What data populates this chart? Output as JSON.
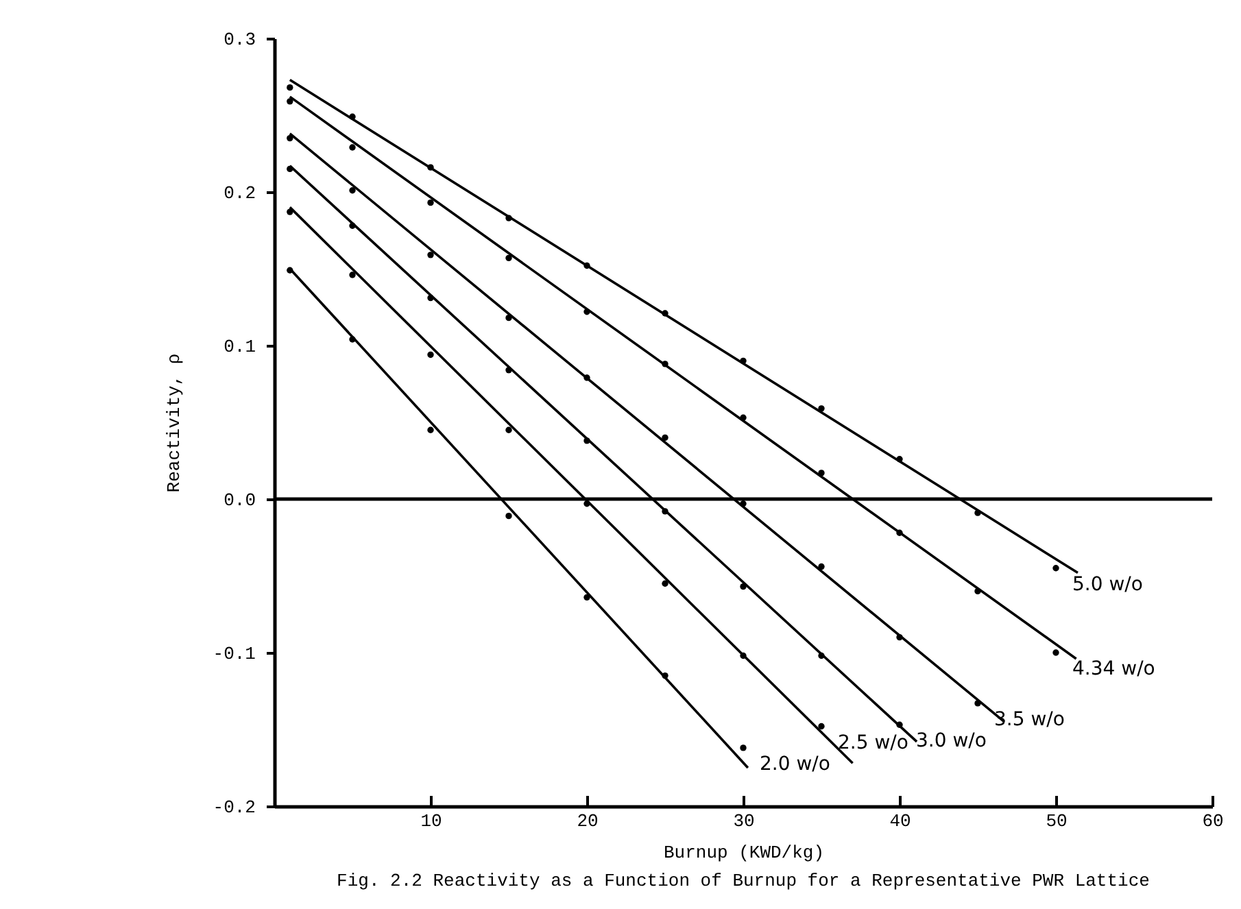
{
  "chart_data": {
    "type": "scatter",
    "xlabel": "Burnup (KWD/kg)",
    "ylabel": "Reactivity, ρ",
    "annotations": [
      "Fig. 2.2  Reactivity as a Function of Burnup for a Representative PWR Lattice"
    ],
    "xlim": [
      0,
      60
    ],
    "xticks": [
      10,
      20,
      30,
      40,
      50,
      60
    ],
    "ylim": [
      -0.2,
      0.3
    ],
    "yticks": [
      {
        "value": -0.2,
        "label": "-0.2"
      },
      {
        "value": -0.1,
        "label": "-0.1"
      },
      {
        "value": 0,
        "label": "0.0"
      },
      {
        "value": 0.1,
        "label": "0.1"
      },
      {
        "value": 0.2,
        "label": "0.2"
      },
      {
        "value": 0.3,
        "label": "0.3"
      }
    ],
    "grid": false,
    "legend": false,
    "marker": "circle",
    "line_style": "solid",
    "ref_lines": [
      {
        "axis": "y",
        "value": 0,
        "color": "#000000"
      }
    ],
    "series": [
      {
        "name": "5.0 w/o",
        "color": "#000000",
        "x": [
          1,
          5,
          10,
          15,
          20,
          25,
          30,
          35,
          40,
          45,
          50
        ],
        "values": [
          0.268,
          0.249,
          0.216,
          0.183,
          0.152,
          0.121,
          0.09,
          0.059,
          0.026,
          -0.009,
          -0.045
        ]
      },
      {
        "name": "4.34 w/o",
        "color": "#000000",
        "x": [
          1,
          5,
          10,
          15,
          20,
          25,
          30,
          35,
          40,
          45,
          50
        ],
        "values": [
          0.259,
          0.229,
          0.193,
          0.157,
          0.122,
          0.088,
          0.053,
          0.017,
          -0.022,
          -0.06,
          -0.1
        ]
      },
      {
        "name": "3.5 w/o",
        "color": "#000000",
        "x": [
          1,
          5,
          10,
          15,
          20,
          25,
          30,
          35,
          40,
          45
        ],
        "values": [
          0.235,
          0.201,
          0.159,
          0.118,
          0.079,
          0.04,
          -0.003,
          -0.044,
          -0.09,
          -0.133
        ]
      },
      {
        "name": "3.0 w/o",
        "color": "#000000",
        "x": [
          1,
          5,
          10,
          15,
          20,
          25,
          30,
          35,
          40
        ],
        "values": [
          0.215,
          0.178,
          0.131,
          0.084,
          0.038,
          -0.008,
          -0.057,
          -0.102,
          -0.147
        ]
      },
      {
        "name": "2.5 w/o",
        "color": "#000000",
        "x": [
          1,
          5,
          10,
          15,
          20,
          25,
          30,
          35
        ],
        "values": [
          0.187,
          0.146,
          0.094,
          0.045,
          -0.003,
          -0.055,
          -0.102,
          -0.148
        ]
      },
      {
        "name": "2.0 w/o",
        "color": "#000000",
        "x": [
          1,
          5,
          10,
          15,
          20,
          25,
          30
        ],
        "values": [
          0.149,
          0.104,
          0.045,
          -0.011,
          -0.064,
          -0.115,
          -0.162
        ]
      },
      {
        "type": "line",
        "marker": "none",
        "color": "#000000",
        "x": [
          1,
          51.4
        ],
        "values": [
          0.273,
          -0.048
        ]
      },
      {
        "type": "line",
        "marker": "none",
        "color": "#000000",
        "x": [
          1,
          51.3
        ],
        "values": [
          0.262,
          -0.104
        ]
      },
      {
        "type": "line",
        "marker": "none",
        "color": "#000000",
        "x": [
          1,
          46.7
        ],
        "values": [
          0.238,
          -0.145
        ]
      },
      {
        "type": "line",
        "marker": "none",
        "color": "#000000",
        "x": [
          1,
          41.1
        ],
        "values": [
          0.217,
          -0.158
        ]
      },
      {
        "type": "line",
        "marker": "none",
        "color": "#000000",
        "x": [
          1,
          37
        ],
        "values": [
          0.19,
          -0.172
        ]
      },
      {
        "type": "line",
        "marker": "none",
        "color": "#000000",
        "x": [
          1,
          30.3
        ],
        "values": [
          0.15,
          -0.175
        ]
      }
    ]
  }
}
